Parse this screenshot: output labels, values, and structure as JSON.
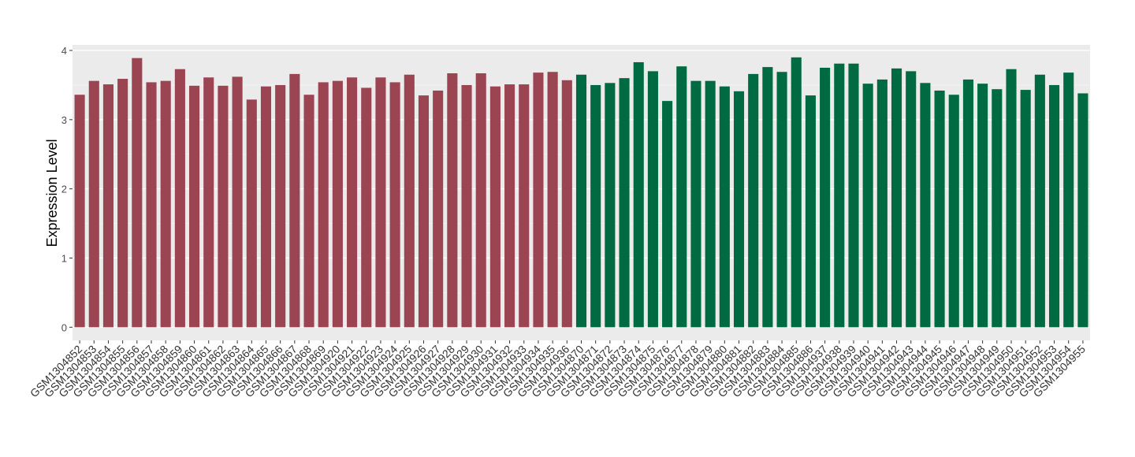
{
  "chart_data": {
    "type": "bar",
    "y_label": "Expression Level",
    "categories": [
      "GSM1304852",
      "GSM1304853",
      "GSM1304854",
      "GSM1304855",
      "GSM1304856",
      "GSM1304857",
      "GSM1304858",
      "GSM1304859",
      "GSM1304860",
      "GSM1304861",
      "GSM1304862",
      "GSM1304863",
      "GSM1304864",
      "GSM1304865",
      "GSM1304866",
      "GSM1304867",
      "GSM1304868",
      "GSM1304869",
      "GSM1304920",
      "GSM1304921",
      "GSM1304922",
      "GSM1304923",
      "GSM1304924",
      "GSM1304925",
      "GSM1304926",
      "GSM1304927",
      "GSM1304928",
      "GSM1304929",
      "GSM1304930",
      "GSM1304931",
      "GSM1304932",
      "GSM1304933",
      "GSM1304934",
      "GSM1304935",
      "GSM1304936",
      "GSM1304870",
      "GSM1304871",
      "GSM1304872",
      "GSM1304873",
      "GSM1304874",
      "GSM1304875",
      "GSM1304876",
      "GSM1304877",
      "GSM1304878",
      "GSM1304879",
      "GSM1304880",
      "GSM1304881",
      "GSM1304882",
      "GSM1304883",
      "GSM1304884",
      "GSM1304885",
      "GSM1304886",
      "GSM1304937",
      "GSM1304938",
      "GSM1304939",
      "GSM1304940",
      "GSM1304941",
      "GSM1304942",
      "GSM1304943",
      "GSM1304944",
      "GSM1304945",
      "GSM1304946",
      "GSM1304947",
      "GSM1304948",
      "GSM1304949",
      "GSM1304950",
      "GSM1304951",
      "GSM1304952",
      "GSM1304953",
      "GSM1304954",
      "GSM1304955"
    ],
    "series": [
      {
        "color": "#9b4452",
        "values": [
          3.36,
          3.56,
          3.51,
          3.59,
          3.89,
          3.54,
          3.56,
          3.73,
          3.49,
          3.61,
          3.49,
          3.62,
          3.29,
          3.48,
          3.5,
          3.66,
          3.36,
          3.54,
          3.56,
          3.61,
          3.46,
          3.61,
          3.54,
          3.65,
          3.35,
          3.42,
          3.67,
          3.5,
          3.67,
          3.48,
          3.51,
          3.51,
          3.68,
          3.69,
          3.57,
          null,
          null,
          null,
          null,
          null,
          null,
          null,
          null,
          null,
          null,
          null,
          null,
          null,
          null,
          null,
          null,
          null,
          null,
          null,
          null,
          null,
          null,
          null,
          null,
          null,
          null,
          null,
          null,
          null,
          null,
          null,
          null,
          null,
          null,
          null,
          null
        ]
      },
      {
        "color": "#006a43",
        "values": [
          null,
          null,
          null,
          null,
          null,
          null,
          null,
          null,
          null,
          null,
          null,
          null,
          null,
          null,
          null,
          null,
          null,
          null,
          null,
          null,
          null,
          null,
          null,
          null,
          null,
          null,
          null,
          null,
          null,
          null,
          null,
          null,
          null,
          null,
          null,
          3.65,
          3.5,
          3.53,
          3.6,
          3.83,
          3.7,
          3.27,
          3.77,
          3.56,
          3.56,
          3.48,
          3.41,
          3.66,
          3.76,
          3.69,
          3.9,
          3.35,
          3.75,
          3.81,
          3.81,
          3.52,
          3.58,
          3.74,
          3.7,
          3.53,
          3.42,
          3.36,
          3.58,
          3.52,
          3.44,
          3.73,
          3.43,
          3.65,
          3.5,
          3.68,
          3.38
        ]
      }
    ],
    "ylim": [
      -0.19,
      4.08
    ],
    "yticks": [
      0,
      1,
      2,
      3,
      4
    ],
    "grid": true
  }
}
